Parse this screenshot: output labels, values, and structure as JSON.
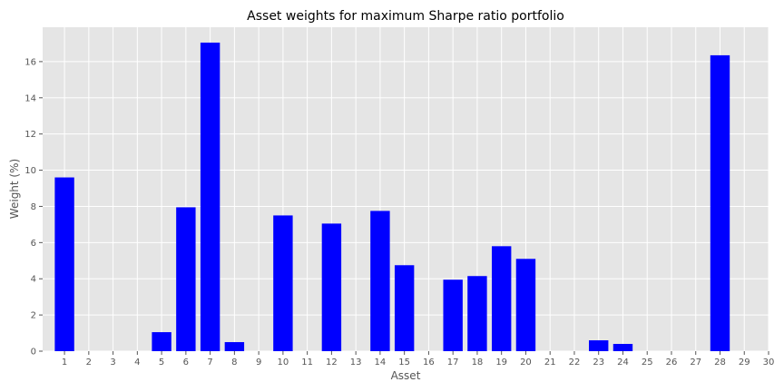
{
  "chart_data": {
    "type": "bar",
    "title": "Asset weights for maximum Sharpe ratio portfolio",
    "xlabel": "Asset",
    "ylabel": "Weight (%)",
    "categories": [
      "1",
      "2",
      "3",
      "4",
      "5",
      "6",
      "7",
      "8",
      "9",
      "10",
      "11",
      "12",
      "13",
      "14",
      "15",
      "16",
      "17",
      "18",
      "19",
      "20",
      "21",
      "22",
      "23",
      "24",
      "25",
      "26",
      "27",
      "28",
      "29",
      "30"
    ],
    "values": [
      9.6,
      0,
      0,
      0,
      1.05,
      7.95,
      17.05,
      0.5,
      0,
      7.5,
      0,
      7.05,
      0,
      7.75,
      4.75,
      0,
      3.95,
      4.15,
      5.8,
      5.1,
      0,
      0,
      0.6,
      0.4,
      0,
      0,
      0,
      16.35,
      0,
      0
    ],
    "xlim": [
      0.1,
      30.0
    ],
    "ylim": [
      0,
      17.9
    ],
    "yticks": [
      0,
      2,
      4,
      6,
      8,
      10,
      12,
      14,
      16
    ],
    "bar_color": "#0000ff",
    "background_color": "#e5e5e5",
    "grid": true,
    "legend": false
  }
}
